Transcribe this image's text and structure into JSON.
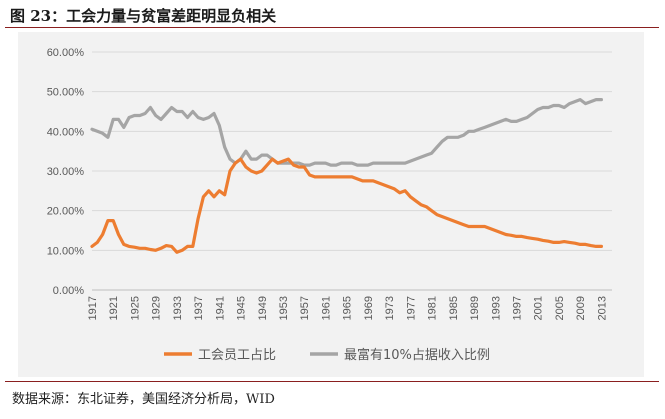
{
  "figure": {
    "title": "图 23：工会力量与贫富差距明显负相关",
    "source": "数据来源：东北证券，美国经济分析局，WID"
  },
  "chart_data": {
    "type": "line",
    "ylim": [
      0,
      60
    ],
    "yticks": [
      "0.00%",
      "10.00%",
      "20.00%",
      "30.00%",
      "40.00%",
      "50.00%",
      "60.00%"
    ],
    "x_start": 1917,
    "x_end": 2015,
    "x_tick_labels": [
      "1917",
      "1921",
      "1925",
      "1929",
      "1933",
      "1937",
      "1941",
      "1945",
      "1949",
      "1953",
      "1957",
      "1961",
      "1965",
      "1969",
      "1973",
      "1977",
      "1981",
      "1985",
      "1989",
      "1993",
      "1997",
      "2001",
      "2005",
      "2009",
      "2013"
    ],
    "grid": true,
    "legend_position": "bottom",
    "colors": {
      "union": "#ed7d31",
      "top10": "#a5a5a5"
    },
    "series": [
      {
        "name": "工会员工占比",
        "values": [
          11.0,
          12.0,
          14.0,
          17.5,
          17.5,
          14.0,
          11.5,
          11.0,
          10.8,
          10.5,
          10.5,
          10.2,
          10.0,
          10.5,
          11.2,
          11.0,
          9.5,
          10.0,
          11.0,
          11.0,
          18.0,
          23.5,
          25.0,
          23.5,
          25.0,
          24.0,
          30.0,
          32.0,
          33.0,
          31.0,
          30.0,
          29.5,
          30.0,
          31.5,
          33.0,
          32.0,
          32.5,
          33.0,
          31.5,
          31.0,
          31.0,
          29.0,
          28.5,
          28.5,
          28.5,
          28.5,
          28.5,
          28.5,
          28.5,
          28.5,
          28.0,
          27.5,
          27.5,
          27.5,
          27.0,
          26.5,
          26.0,
          25.5,
          24.5,
          25.0,
          23.5,
          22.5,
          21.5,
          21.0,
          20.0,
          19.0,
          18.5,
          18.0,
          17.5,
          17.0,
          16.5,
          16.0,
          16.0,
          16.0,
          16.0,
          15.5,
          15.0,
          14.5,
          14.0,
          13.8,
          13.5,
          13.5,
          13.2,
          13.0,
          12.8,
          12.5,
          12.3,
          12.0,
          12.0,
          12.2,
          12.0,
          11.8,
          11.5,
          11.5,
          11.2,
          11.0,
          11.0
        ]
      },
      {
        "name": "最富有10%占据收入比例",
        "values": [
          40.5,
          40.0,
          39.5,
          38.5,
          43.0,
          43.0,
          41.0,
          43.5,
          44.0,
          44.0,
          44.5,
          46.0,
          44.0,
          43.0,
          44.5,
          46.0,
          45.0,
          45.0,
          43.5,
          45.0,
          43.5,
          43.0,
          43.5,
          44.5,
          41.5,
          36.0,
          33.0,
          32.0,
          33.0,
          35.0,
          33.0,
          33.0,
          34.0,
          34.0,
          33.0,
          32.0,
          32.0,
          32.0,
          32.0,
          32.0,
          31.5,
          31.5,
          32.0,
          32.0,
          32.0,
          31.5,
          31.5,
          32.0,
          32.0,
          32.0,
          31.5,
          31.5,
          31.5,
          32.0,
          32.0,
          32.0,
          32.0,
          32.0,
          32.0,
          32.0,
          32.5,
          33.0,
          33.5,
          34.0,
          34.5,
          36.0,
          37.5,
          38.5,
          38.5,
          38.5,
          39.0,
          40.0,
          40.0,
          40.5,
          41.0,
          41.5,
          42.0,
          42.5,
          43.0,
          42.5,
          42.5,
          43.0,
          43.5,
          44.5,
          45.5,
          46.0,
          46.0,
          46.5,
          46.5,
          46.0,
          47.0,
          47.5,
          48.0,
          47.0,
          47.5,
          48.0,
          48.0
        ]
      }
    ]
  }
}
